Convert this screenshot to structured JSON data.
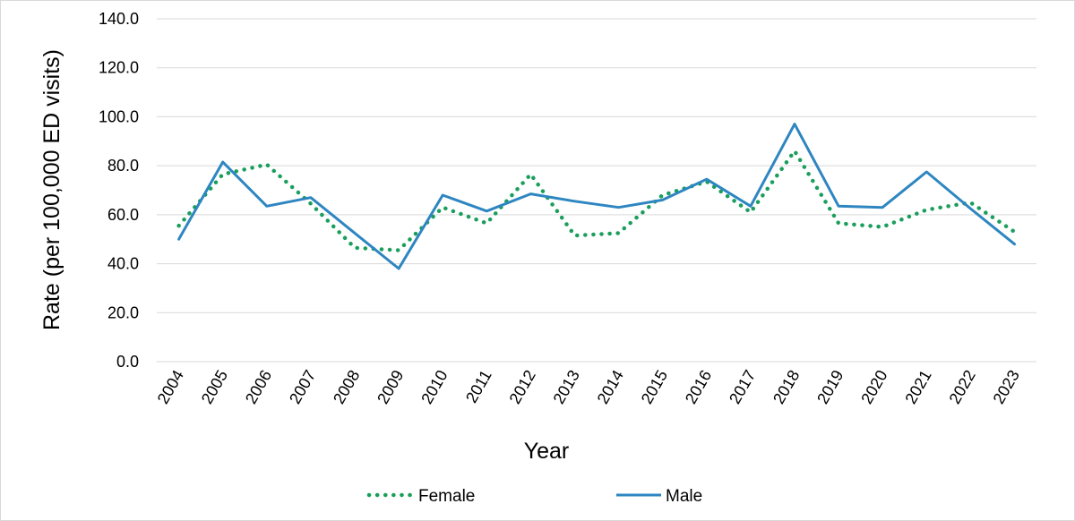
{
  "chart_data": {
    "type": "line",
    "xlabel": "Year",
    "ylabel": "Rate (per 100,000 ED visits)",
    "ylim": [
      0,
      140
    ],
    "yticks": [
      "0.0",
      "20.0",
      "40.0",
      "60.0",
      "80.0",
      "100.0",
      "120.0",
      "140.0"
    ],
    "grid": true,
    "legend_position": "bottom",
    "categories": [
      "2004",
      "2005",
      "2006",
      "2007",
      "2008",
      "2009",
      "2010",
      "2011",
      "2012",
      "2013",
      "2014",
      "2015",
      "2016",
      "2017",
      "2018",
      "2019",
      "2020",
      "2021",
      "2022",
      "2023"
    ],
    "series": [
      {
        "name": "Female",
        "style": "dotted",
        "color": "#1a9e5c",
        "values": [
          55.5,
          76.5,
          80.5,
          64.5,
          46.5,
          45.5,
          63.0,
          56.5,
          76.5,
          51.5,
          52.5,
          68.0,
          73.5,
          61.0,
          86.0,
          56.5,
          55.0,
          62.0,
          65.0,
          53.0
        ]
      },
      {
        "name": "Male",
        "style": "solid",
        "color": "#2e86c1",
        "values": [
          50.0,
          81.5,
          63.5,
          67.0,
          52.5,
          38.0,
          68.0,
          61.5,
          68.5,
          65.5,
          63.0,
          66.0,
          74.5,
          63.5,
          97.0,
          63.5,
          63.0,
          77.5,
          62.5,
          48.0
        ]
      }
    ]
  }
}
